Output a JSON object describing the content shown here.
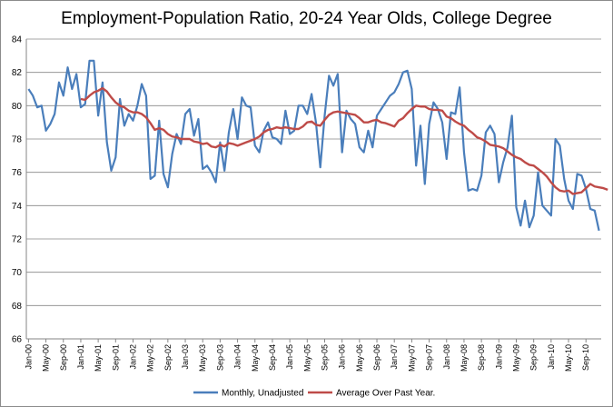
{
  "chart_data": {
    "type": "line",
    "title": "Employment-Population Ratio, 20-24 Year Olds, College Degree",
    "xlabel": "",
    "ylabel": "",
    "ylim": [
      66,
      84
    ],
    "yticks": [
      "66",
      "68",
      "70",
      "72",
      "74",
      "76",
      "78",
      "80",
      "82",
      "84"
    ],
    "x_start": "Jan-00",
    "x_tick_labels": [
      "Jan-00",
      "May-00",
      "Sep-00",
      "Jan-01",
      "May-01",
      "Sep-01",
      "Jan-02",
      "May-02",
      "Sep-02",
      "Jan-03",
      "May-03",
      "Sep-03",
      "Jan-04",
      "May-04",
      "Sep-04",
      "Jan-05",
      "May-05",
      "Sep-05",
      "Jan-06",
      "May-06",
      "Sep-06",
      "Jan-07",
      "May-07",
      "Sep-07",
      "Jan-08",
      "May-08",
      "Sep-08",
      "Jan-09",
      "May-09",
      "Sep-09",
      "Jan-10",
      "May-10",
      "Sep-10"
    ],
    "grid": "horizontal",
    "legend": "bottom",
    "series": [
      {
        "name": "Monthly, Unadjusted",
        "color": "#4a7ebb",
        "values": [
          81.0,
          80.6,
          79.9,
          80.0,
          78.5,
          78.9,
          79.5,
          81.4,
          80.6,
          82.3,
          81.0,
          81.9,
          79.9,
          80.1,
          82.7,
          82.7,
          79.4,
          81.4,
          77.8,
          76.1,
          76.9,
          80.4,
          78.8,
          79.5,
          79.1,
          80.0,
          81.3,
          80.6,
          75.6,
          75.8,
          79.1,
          75.9,
          75.1,
          77.1,
          78.3,
          77.7,
          79.5,
          79.8,
          78.2,
          79.2,
          76.2,
          76.4,
          76.0,
          75.4,
          77.8,
          76.1,
          78.4,
          79.8,
          78.0,
          80.5,
          80.0,
          79.9,
          77.6,
          77.2,
          78.5,
          79.0,
          78.1,
          78.0,
          77.7,
          79.7,
          78.3,
          78.5,
          80.0,
          80.0,
          79.5,
          80.7,
          79.0,
          76.3,
          79.4,
          81.8,
          81.2,
          81.9,
          77.2,
          79.7,
          79.2,
          78.9,
          77.5,
          77.2,
          78.5,
          77.5,
          79.4,
          79.8,
          80.2,
          80.6,
          80.8,
          81.3,
          82.0,
          82.1,
          81.0,
          76.4,
          78.8,
          75.3,
          78.9,
          80.2,
          79.8,
          79.0,
          76.8,
          79.6,
          79.5,
          81.1,
          77.2,
          74.9,
          75.0,
          74.9,
          75.8,
          78.4,
          78.8,
          78.3,
          75.4,
          76.6,
          77.5,
          79.4,
          73.9,
          72.8,
          74.3,
          72.7,
          73.4,
          76.0,
          74.0,
          73.7,
          73.4,
          78.0,
          77.6,
          75.6,
          74.3,
          73.8,
          75.9,
          75.8,
          75.0,
          73.8,
          73.7,
          72.5
        ]
      },
      {
        "name": "Average Over Past Year.",
        "color": "#be4b48",
        "values": [
          null,
          null,
          null,
          null,
          null,
          null,
          null,
          null,
          null,
          null,
          null,
          null,
          80.4,
          80.35,
          80.6,
          80.8,
          80.9,
          81.05,
          80.85,
          80.5,
          80.2,
          80.0,
          79.9,
          79.7,
          79.6,
          79.6,
          79.5,
          79.3,
          78.95,
          78.55,
          78.65,
          78.55,
          78.3,
          78.15,
          78.1,
          78.0,
          78.0,
          78.0,
          77.85,
          77.8,
          77.7,
          77.75,
          77.55,
          77.5,
          77.65,
          77.55,
          77.75,
          77.7,
          77.6,
          77.7,
          77.8,
          77.9,
          78.0,
          78.15,
          78.4,
          78.55,
          78.6,
          78.7,
          78.65,
          78.7,
          78.65,
          78.6,
          78.6,
          78.75,
          79.0,
          79.05,
          78.85,
          78.8,
          79.15,
          79.45,
          79.6,
          79.65,
          79.6,
          79.55,
          79.5,
          79.45,
          79.25,
          79.0,
          79.0,
          79.1,
          79.15,
          79.0,
          78.95,
          78.85,
          78.75,
          79.1,
          79.25,
          79.55,
          79.8,
          80.0,
          79.95,
          79.95,
          79.8,
          79.75,
          79.75,
          79.7,
          79.35,
          79.25,
          79.05,
          78.9,
          78.8,
          78.55,
          78.35,
          78.1,
          78.0,
          77.85,
          77.65,
          77.6,
          77.55,
          77.45,
          77.25,
          77.05,
          76.9,
          76.8,
          76.6,
          76.45,
          76.4,
          76.2,
          76.0,
          75.75,
          75.4,
          75.1,
          74.9,
          74.85,
          74.9,
          74.7,
          74.75,
          74.8,
          75.05,
          75.3,
          75.15,
          75.1,
          75.05,
          74.95
        ]
      }
    ]
  }
}
